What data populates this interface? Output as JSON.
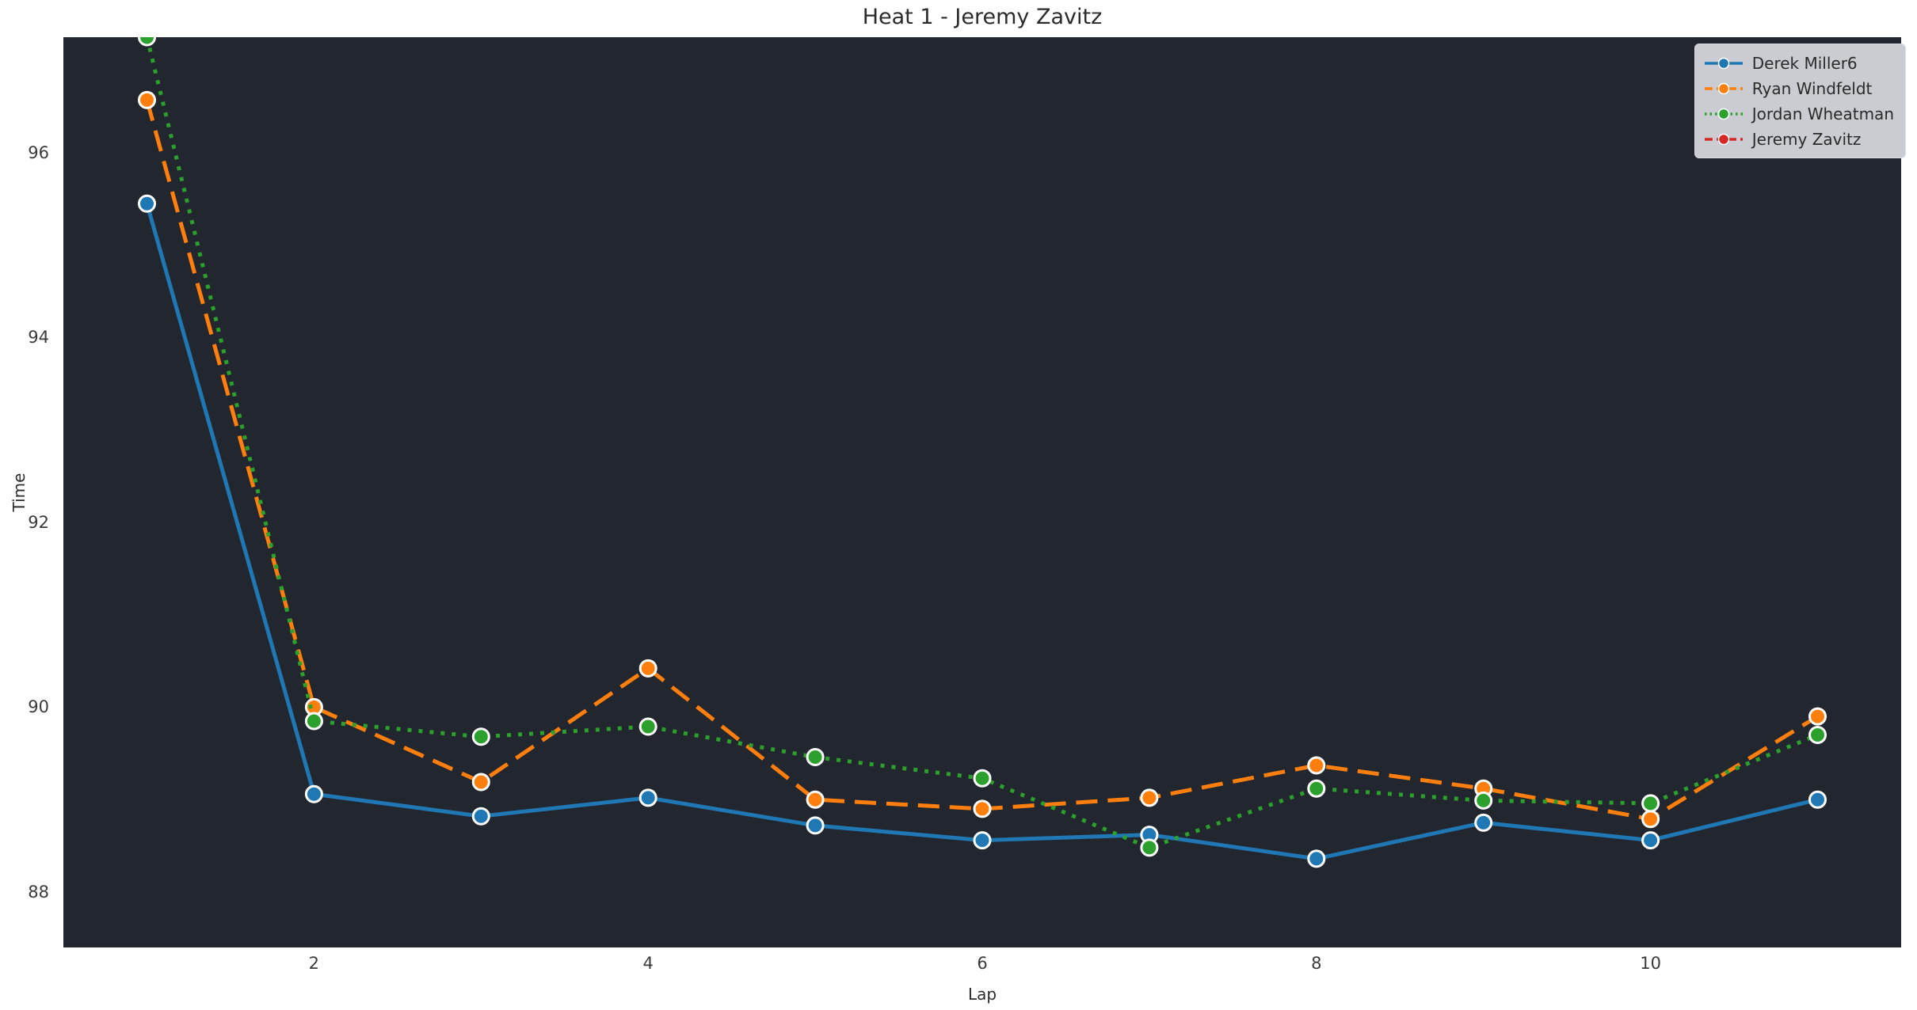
{
  "figure": {
    "colors": {
      "figure_bg": "#ffffff",
      "axes_bg": "#22262e",
      "title_text": "#2b2b2b",
      "tick_text": "#3a3a3a",
      "legend_bg": "#cbccd2",
      "legend_border": "#dcdde2",
      "legend_text": "#2a2a2a",
      "marker_edge": "#ffffff"
    }
  },
  "chart_data": {
    "type": "line",
    "title": "Heat 1 - Jeremy Zavitz",
    "xlabel": "Lap",
    "ylabel": "Time",
    "xlim": [
      0.5,
      11.5
    ],
    "ylim": [
      87.4,
      97.25
    ],
    "x_ticks": [
      2,
      4,
      6,
      8,
      10
    ],
    "y_ticks": [
      88,
      90,
      92,
      94,
      96
    ],
    "grid": false,
    "legend_position": "upper right",
    "x": [
      1,
      2,
      3,
      4,
      5,
      6,
      7,
      8,
      9,
      10,
      11
    ],
    "series": [
      {
        "name": "Derek Miller6",
        "color": "#1f77b4",
        "line_style": "solid",
        "marker": "circle",
        "values": [
          95.45,
          89.06,
          88.82,
          89.02,
          88.72,
          88.56,
          88.62,
          88.36,
          88.75,
          88.56,
          89.0
        ]
      },
      {
        "name": "Ryan Windfeldt",
        "color": "#ff7f0e",
        "line_style": "dashed",
        "marker": "circle",
        "values": [
          96.57,
          90.0,
          89.19,
          90.42,
          89.0,
          88.9,
          89.02,
          89.37,
          89.12,
          88.79,
          89.9
        ]
      },
      {
        "name": "Jordan Wheatman",
        "color": "#2ca02c",
        "line_style": "dotted",
        "marker": "circle",
        "values": [
          97.25,
          89.85,
          89.68,
          89.79,
          89.46,
          89.23,
          88.48,
          89.12,
          88.99,
          88.96,
          89.7
        ]
      },
      {
        "name": "Jeremy Zavitz",
        "color": "#d62728",
        "line_style": "dashed",
        "marker": "circle",
        "values": []
      }
    ]
  }
}
